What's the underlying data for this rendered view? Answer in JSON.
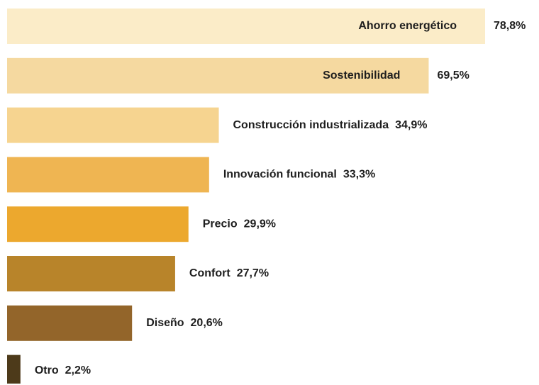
{
  "chart_data": {
    "type": "bar",
    "orientation": "horizontal",
    "categories": [
      "Ahorro energético",
      "Sostenibilidad",
      "Construcción industrializada",
      "Innovación funcional",
      "Precio",
      "Confort",
      "Diseño",
      "Otro"
    ],
    "values": [
      78.8,
      69.5,
      34.9,
      33.3,
      29.9,
      27.7,
      20.6,
      2.2
    ],
    "value_labels": [
      "78,8%",
      "69,5%",
      "34,9%",
      "33,3%",
      "29,9%",
      "27,7%",
      "20,6%",
      "2,2%"
    ],
    "colors": [
      "#fbecc8",
      "#f5d9a0",
      "#f6d490",
      "#efb552",
      "#eca82e",
      "#b8842a",
      "#93652a",
      "#4d3a1a"
    ]
  }
}
